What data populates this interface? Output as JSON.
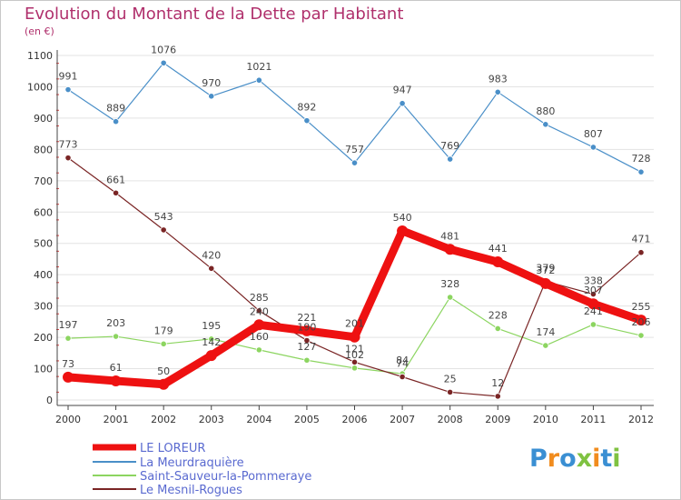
{
  "title": "Evolution du Montant de la Dette par Habitant",
  "subtitle": "(en €)",
  "logo": {
    "letters": [
      "P",
      "r",
      "o",
      "x",
      "i",
      "t",
      "i"
    ],
    "colors": [
      "#3a8fd3",
      "#f18c1e",
      "#3a8fd3",
      "#7fc241",
      "#f18c1e",
      "#3a8fd3",
      "#7fc241"
    ]
  },
  "chart_data": {
    "type": "line",
    "x": [
      "2000",
      "2001",
      "2002",
      "2003",
      "2004",
      "2005",
      "2006",
      "2007",
      "2008",
      "2009",
      "2010",
      "2011",
      "2012"
    ],
    "ylim": [
      0,
      1100
    ],
    "yticks": [
      "0",
      "100",
      "200",
      "300",
      "400",
      "500",
      "600",
      "700",
      "800",
      "900",
      "1000",
      "1100"
    ],
    "grid": "horizontal",
    "legend_position": "bottom-left",
    "series": [
      {
        "name": "LE LOREUR",
        "color": "#ee1111",
        "values": [
          73,
          61,
          50,
          142,
          240,
          221,
          201,
          540,
          481,
          441,
          372,
          307,
          255
        ],
        "labels": [
          "73",
          "61",
          "50",
          "142",
          "240",
          "221",
          "201",
          "540",
          "481",
          "441",
          "372",
          "307",
          "255"
        ]
      },
      {
        "name": "La Meurdraquière",
        "color": "#4a8fc8",
        "values": [
          991,
          889,
          1076,
          970,
          1021,
          892,
          757,
          947,
          769,
          983,
          880,
          807,
          728
        ],
        "labels": [
          "991",
          "889",
          "1076",
          "970",
          "1021",
          "892",
          "757",
          "947",
          "769",
          "983",
          "880",
          "807",
          "728"
        ]
      },
      {
        "name": "Saint-Sauveur-la-Pommeraye",
        "color": "#8cd560",
        "values": [
          197,
          203,
          179,
          195,
          160,
          127,
          102,
          84,
          328,
          228,
          174,
          241,
          206
        ],
        "labels": [
          "197",
          "203",
          "179",
          "195",
          "160",
          "127",
          "102",
          "84",
          "328",
          "228",
          "174",
          "241",
          "206"
        ]
      },
      {
        "name": "Le Mesnil-Rogues",
        "color": "#7a2525",
        "values": [
          773,
          661,
          543,
          420,
          285,
          190,
          121,
          74,
          25,
          12,
          379,
          338,
          471
        ],
        "labels": [
          "773",
          "661",
          "543",
          "420",
          "285",
          "190",
          "121",
          "74",
          "25",
          "12",
          "379",
          "338",
          "471"
        ]
      }
    ]
  }
}
